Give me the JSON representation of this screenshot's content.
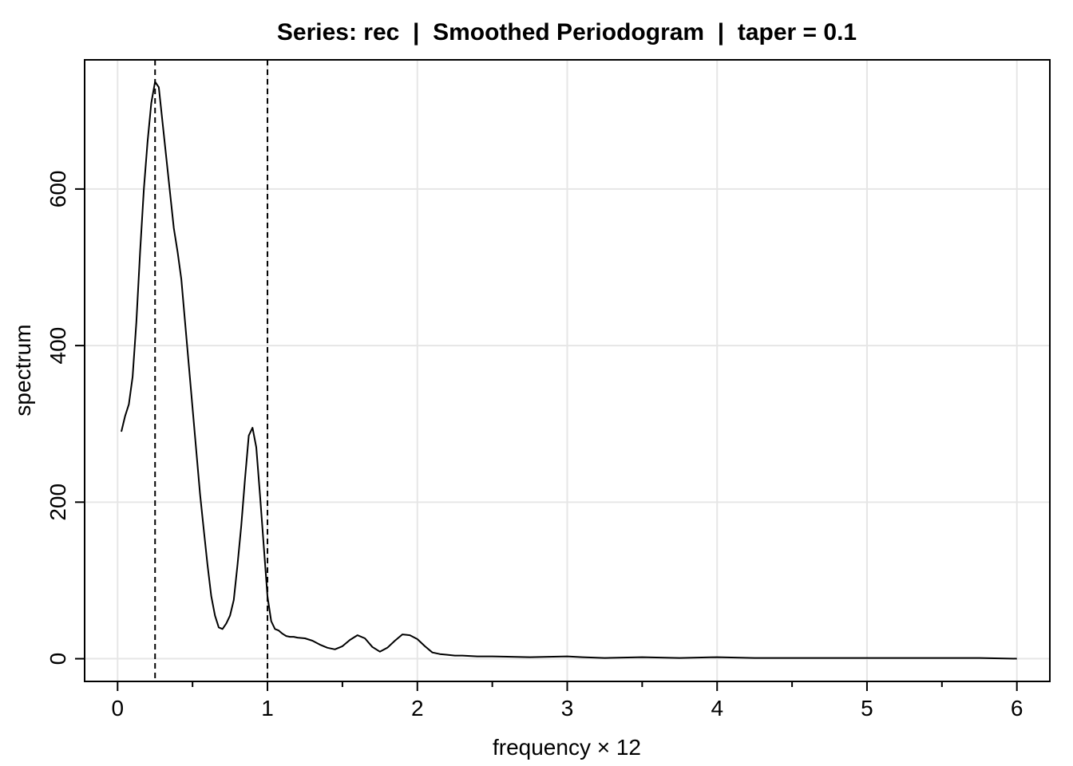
{
  "chart_data": {
    "type": "line",
    "title": "Series: rec  |  Smoothed Periodogram  |  taper = 0.1",
    "xlabel": "frequency × 12",
    "ylabel": "spectrum",
    "xlim": [
      -0.22,
      6.22
    ],
    "ylim": [
      -29,
      765
    ],
    "x_ticks": [
      0,
      1,
      2,
      3,
      4,
      5,
      6
    ],
    "x_minor_ticks": [
      0.5,
      1.5,
      2.5,
      3.5,
      4.5,
      5.5
    ],
    "y_ticks": [
      0,
      200,
      400,
      600
    ],
    "grid": true,
    "legend": "none",
    "vlines": [
      0.25,
      1.0
    ],
    "series": [
      {
        "x": [
          0.025,
          0.05,
          0.075,
          0.1,
          0.125,
          0.15,
          0.175,
          0.2,
          0.225,
          0.25,
          0.275,
          0.3,
          0.325,
          0.35,
          0.375,
          0.4,
          0.425,
          0.45,
          0.475,
          0.5,
          0.525,
          0.55,
          0.575,
          0.6,
          0.625,
          0.65,
          0.675,
          0.7,
          0.725,
          0.75,
          0.775,
          0.8,
          0.825,
          0.85,
          0.875,
          0.9,
          0.925,
          0.95,
          0.975,
          1.0,
          1.025,
          1.05,
          1.075,
          1.1,
          1.125,
          1.15,
          1.175,
          1.2,
          1.25,
          1.3,
          1.35,
          1.4,
          1.45,
          1.5,
          1.55,
          1.6,
          1.65,
          1.7,
          1.75,
          1.8,
          1.85,
          1.9,
          1.95,
          2.0,
          2.05,
          2.1,
          2.15,
          2.2,
          2.25,
          2.3,
          2.4,
          2.5,
          2.75,
          3.0,
          3.1,
          3.25,
          3.5,
          3.75,
          4.0,
          4.25,
          4.5,
          4.75,
          5.0,
          5.25,
          5.5,
          5.75,
          6.0
        ],
        "y": [
          290,
          310,
          325,
          360,
          430,
          520,
          600,
          660,
          710,
          737,
          730,
          685,
          640,
          595,
          550,
          520,
          485,
          430,
          375,
          320,
          265,
          210,
          165,
          120,
          80,
          55,
          40,
          38,
          45,
          55,
          75,
          120,
          170,
          230,
          285,
          295,
          270,
          210,
          145,
          80,
          48,
          38,
          36,
          32,
          29,
          28,
          28,
          27,
          26,
          23,
          18,
          14,
          12,
          16,
          24,
          30,
          26,
          15,
          9,
          14,
          23,
          31,
          30,
          25,
          16,
          8,
          6,
          5,
          4,
          4,
          3,
          3,
          2,
          3,
          2,
          1,
          2,
          1,
          2,
          1,
          1,
          1,
          1,
          1,
          1,
          1,
          0
        ]
      }
    ]
  }
}
